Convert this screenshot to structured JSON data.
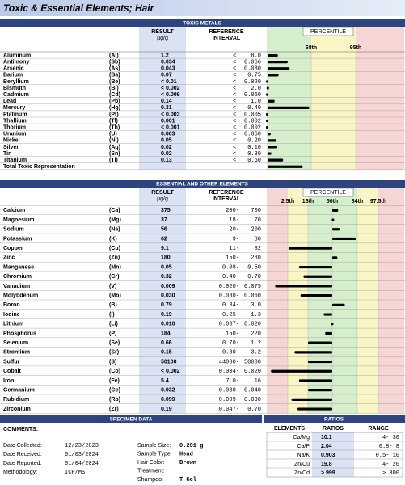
{
  "header": {
    "title": "Toxic & Essential Elements; Hair"
  },
  "toxic": {
    "title": "TOXIC METALS",
    "result_header": "RESULT",
    "unit": "µg/g",
    "reference_header": [
      "REFERENCE",
      "INTERVAL"
    ],
    "percentile_header": "PERCENTILE",
    "percentile_lim": [
      0,
      100
    ],
    "percentile_ticks": [
      {
        "value": 68,
        "label": "68th"
      },
      {
        "value": 95,
        "label": "95th"
      }
    ],
    "rows": [
      {
        "name": "Aluminum",
        "symbol": "(Al)",
        "result": "1.2",
        "op": "<",
        "limit": "8.0",
        "percentile": 17
      },
      {
        "name": "Antimony",
        "symbol": "(Sb)",
        "result": "0.034",
        "op": "<",
        "limit": "0.066",
        "percentile": 32
      },
      {
        "name": "Arsenic",
        "symbol": "(As)",
        "result": "0.043",
        "op": "<",
        "limit": "0.080",
        "percentile": 35
      },
      {
        "name": "Barium",
        "symbol": "(Ba)",
        "result": "0.07",
        "op": "<",
        "limit": "0.75",
        "percentile": 18
      },
      {
        "name": "Beryllium",
        "symbol": "(Be)",
        "result": "< 0.01",
        "op": "<",
        "limit": "0.020",
        "percentile": 0
      },
      {
        "name": "Bismuth",
        "symbol": "(Bi)",
        "result": "< 0.002",
        "op": "<",
        "limit": "2.0",
        "percentile": 2
      },
      {
        "name": "Cadmium",
        "symbol": "(Cd)",
        "result": "< 0.009",
        "op": "<",
        "limit": "0.060",
        "percentile": 0
      },
      {
        "name": "Lead",
        "symbol": "(Pb)",
        "result": "0.14",
        "op": "<",
        "limit": "1.0",
        "percentile": 12
      },
      {
        "name": "Mercury",
        "symbol": "(Hg)",
        "result": "0.31",
        "op": "<",
        "limit": "0.40",
        "percentile": 65
      },
      {
        "name": "Platinum",
        "symbol": "(Pt)",
        "result": "< 0.003",
        "op": "<",
        "limit": "0.005",
        "percentile": 0
      },
      {
        "name": "Thallium",
        "symbol": "(Tl)",
        "result": "0.001",
        "op": "<",
        "limit": "0.002",
        "percentile": 0
      },
      {
        "name": "Thorium",
        "symbol": "(Th)",
        "result": "< 0.001",
        "op": "<",
        "limit": "0.002",
        "percentile": 0
      },
      {
        "name": "Uranium",
        "symbol": "(U)",
        "result": "0.003",
        "op": "<",
        "limit": "0.060",
        "percentile": 6
      },
      {
        "name": "Nickel",
        "symbol": "(Ni)",
        "result": "0.05",
        "op": "<",
        "limit": "0.20",
        "percentile": 15
      },
      {
        "name": "Silver",
        "symbol": "(Ag)",
        "result": "0.02",
        "op": "<",
        "limit": "0.10",
        "percentile": 16
      },
      {
        "name": "Tin",
        "symbol": "(Sn)",
        "result": "0.02",
        "op": "<",
        "limit": "0.30",
        "percentile": 7
      },
      {
        "name": "Titanium",
        "symbol": "(Ti)",
        "result": "0.13",
        "op": "<",
        "limit": "0.60",
        "percentile": 25
      },
      {
        "name": "Total Toxic Representation",
        "percentile": 55
      }
    ]
  },
  "essential": {
    "title": "ESSENTIAL AND OTHER ELEMENTS",
    "result_header": "RESULT",
    "unit": "µg/g",
    "reference_header": [
      "REFERENCE",
      "INTERVAL"
    ],
    "percentile_header": "PERCENTILE",
    "percentile_lim": [
      0,
      100
    ],
    "percentile_ticks": [
      {
        "value": 2.5,
        "label": "2.5th"
      },
      {
        "value": 16,
        "label": "16th"
      },
      {
        "value": 50,
        "label": "50th"
      },
      {
        "value": 84,
        "label": "84th"
      },
      {
        "value": 97.5,
        "label": "97.5th"
      }
    ],
    "rows": [
      {
        "name": "Calcium",
        "symbol": "(Ca)",
        "result": "375",
        "low": "200-",
        "high": "700",
        "percentile": 58
      },
      {
        "name": "Magnesium",
        "symbol": "(Mg)",
        "result": "37",
        "low": "18-",
        "high": "70",
        "percentile": 52
      },
      {
        "name": "Sodium",
        "symbol": "(Na)",
        "result": "56",
        "low": "20-",
        "high": "200",
        "percentile": 60
      },
      {
        "name": "Potassium",
        "symbol": "(K)",
        "result": "62",
        "low": "9-",
        "high": "80",
        "percentile": 82
      },
      {
        "name": "Copper",
        "symbol": "(Cu)",
        "result": "9.1",
        "low": "11-",
        "high": "32",
        "percentile": 3
      },
      {
        "name": "Zinc",
        "symbol": "(Zn)",
        "result": "180",
        "low": "150-",
        "high": "230",
        "percentile": 57
      },
      {
        "name": "Manganese",
        "symbol": "(Mn)",
        "result": "0.05",
        "low": "0.08-",
        "high": "0.50",
        "percentile": 10
      },
      {
        "name": "Chromium",
        "symbol": "(Cr)",
        "result": "0.32",
        "low": "0.40-",
        "high": "0.70",
        "percentile": 13
      },
      {
        "name": "Vanadium",
        "symbol": "(V)",
        "result": "0.009",
        "low": "0.020-",
        "high": "0.075",
        "percentile": 1
      },
      {
        "name": "Molybdenum",
        "symbol": "(Mo)",
        "result": "0.030",
        "low": "0.030-",
        "high": "0.060",
        "percentile": 11
      },
      {
        "name": "Boron",
        "symbol": "(B)",
        "result": "0.79",
        "low": "0.34-",
        "high": "3.0",
        "percentile": 67
      },
      {
        "name": "Iodine",
        "symbol": "(I)",
        "result": "0.19",
        "low": "0.25-",
        "high": "1.3",
        "percentile": 38
      },
      {
        "name": "Lithium",
        "symbol": "(Li)",
        "result": "0.010",
        "low": "0.007-",
        "high": "0.020",
        "percentile": 50
      },
      {
        "name": "Phosphorus",
        "symbol": "(P)",
        "result": "184",
        "low": "150-",
        "high": "220",
        "percentile": 40
      },
      {
        "name": "Selenium",
        "symbol": "(Se)",
        "result": "0.66",
        "low": "0.70-",
        "high": "1.2",
        "percentile": 16
      },
      {
        "name": "Strontium",
        "symbol": "(Sr)",
        "result": "0.15",
        "low": "0.30-",
        "high": "3.2",
        "percentile": 7
      },
      {
        "name": "Sulfur",
        "symbol": "(S)",
        "result": "50100",
        "low": "44000-",
        "high": "50000",
        "percentile": 16
      },
      {
        "name": "Cobalt",
        "symbol": "(Co)",
        "result": "< 0.002",
        "low": "0.004-",
        "high": "0.020",
        "percentile": 0.5
      },
      {
        "name": "Iron",
        "symbol": "(Fe)",
        "result": "5.4",
        "low": "7.0-",
        "high": "16",
        "percentile": 10
      },
      {
        "name": "Germanium",
        "symbol": "(Ge)",
        "result": "0.032",
        "low": "0.030-",
        "high": "0.040",
        "percentile": 16
      },
      {
        "name": "Rubidium",
        "symbol": "(Rb)",
        "result": "0.099",
        "low": "0.009-",
        "high": "0.090",
        "percentile": 5
      },
      {
        "name": "Zirconium",
        "symbol": "(Zr)",
        "result": "0.19",
        "low": "0.047-",
        "high": "0.70",
        "percentile": 9
      }
    ]
  },
  "specimen": {
    "title": "SPECIMEN DATA",
    "comments": "COMMENTS:",
    "left": [
      {
        "label": "Date Collected:",
        "value": "12/23/2023"
      },
      {
        "label": "Date Received:",
        "value": "01/03/2024"
      },
      {
        "label": "Date Reported:",
        "value": "01/04/2024"
      },
      {
        "label": "Methodology:",
        "value": "ICP/MS"
      }
    ],
    "right": [
      {
        "label": "Sample Size:",
        "value": "0.201 g"
      },
      {
        "label": "Sample Type:",
        "value": "Head"
      },
      {
        "label": "Hair Color:",
        "value": "Brown"
      },
      {
        "label": "Treatment:",
        "value": ""
      },
      {
        "label": "Shampoo:",
        "value": "T Gel"
      }
    ]
  },
  "ratios": {
    "title": "RATIOS",
    "headers": [
      "ELEMENTS",
      "RATIOS",
      "RANGE"
    ],
    "rows": [
      [
        "Ca/Mg",
        "10.1",
        "4-  30"
      ],
      [
        "Ca/P",
        "2.04",
        "0.8-  8"
      ],
      [
        "Na/K",
        "0.903",
        "0.5-  10"
      ],
      [
        "Zn/Cu",
        "19.8",
        "4-  20"
      ],
      [
        "Zn/Cd",
        "> 999",
        ">  800"
      ]
    ]
  }
}
